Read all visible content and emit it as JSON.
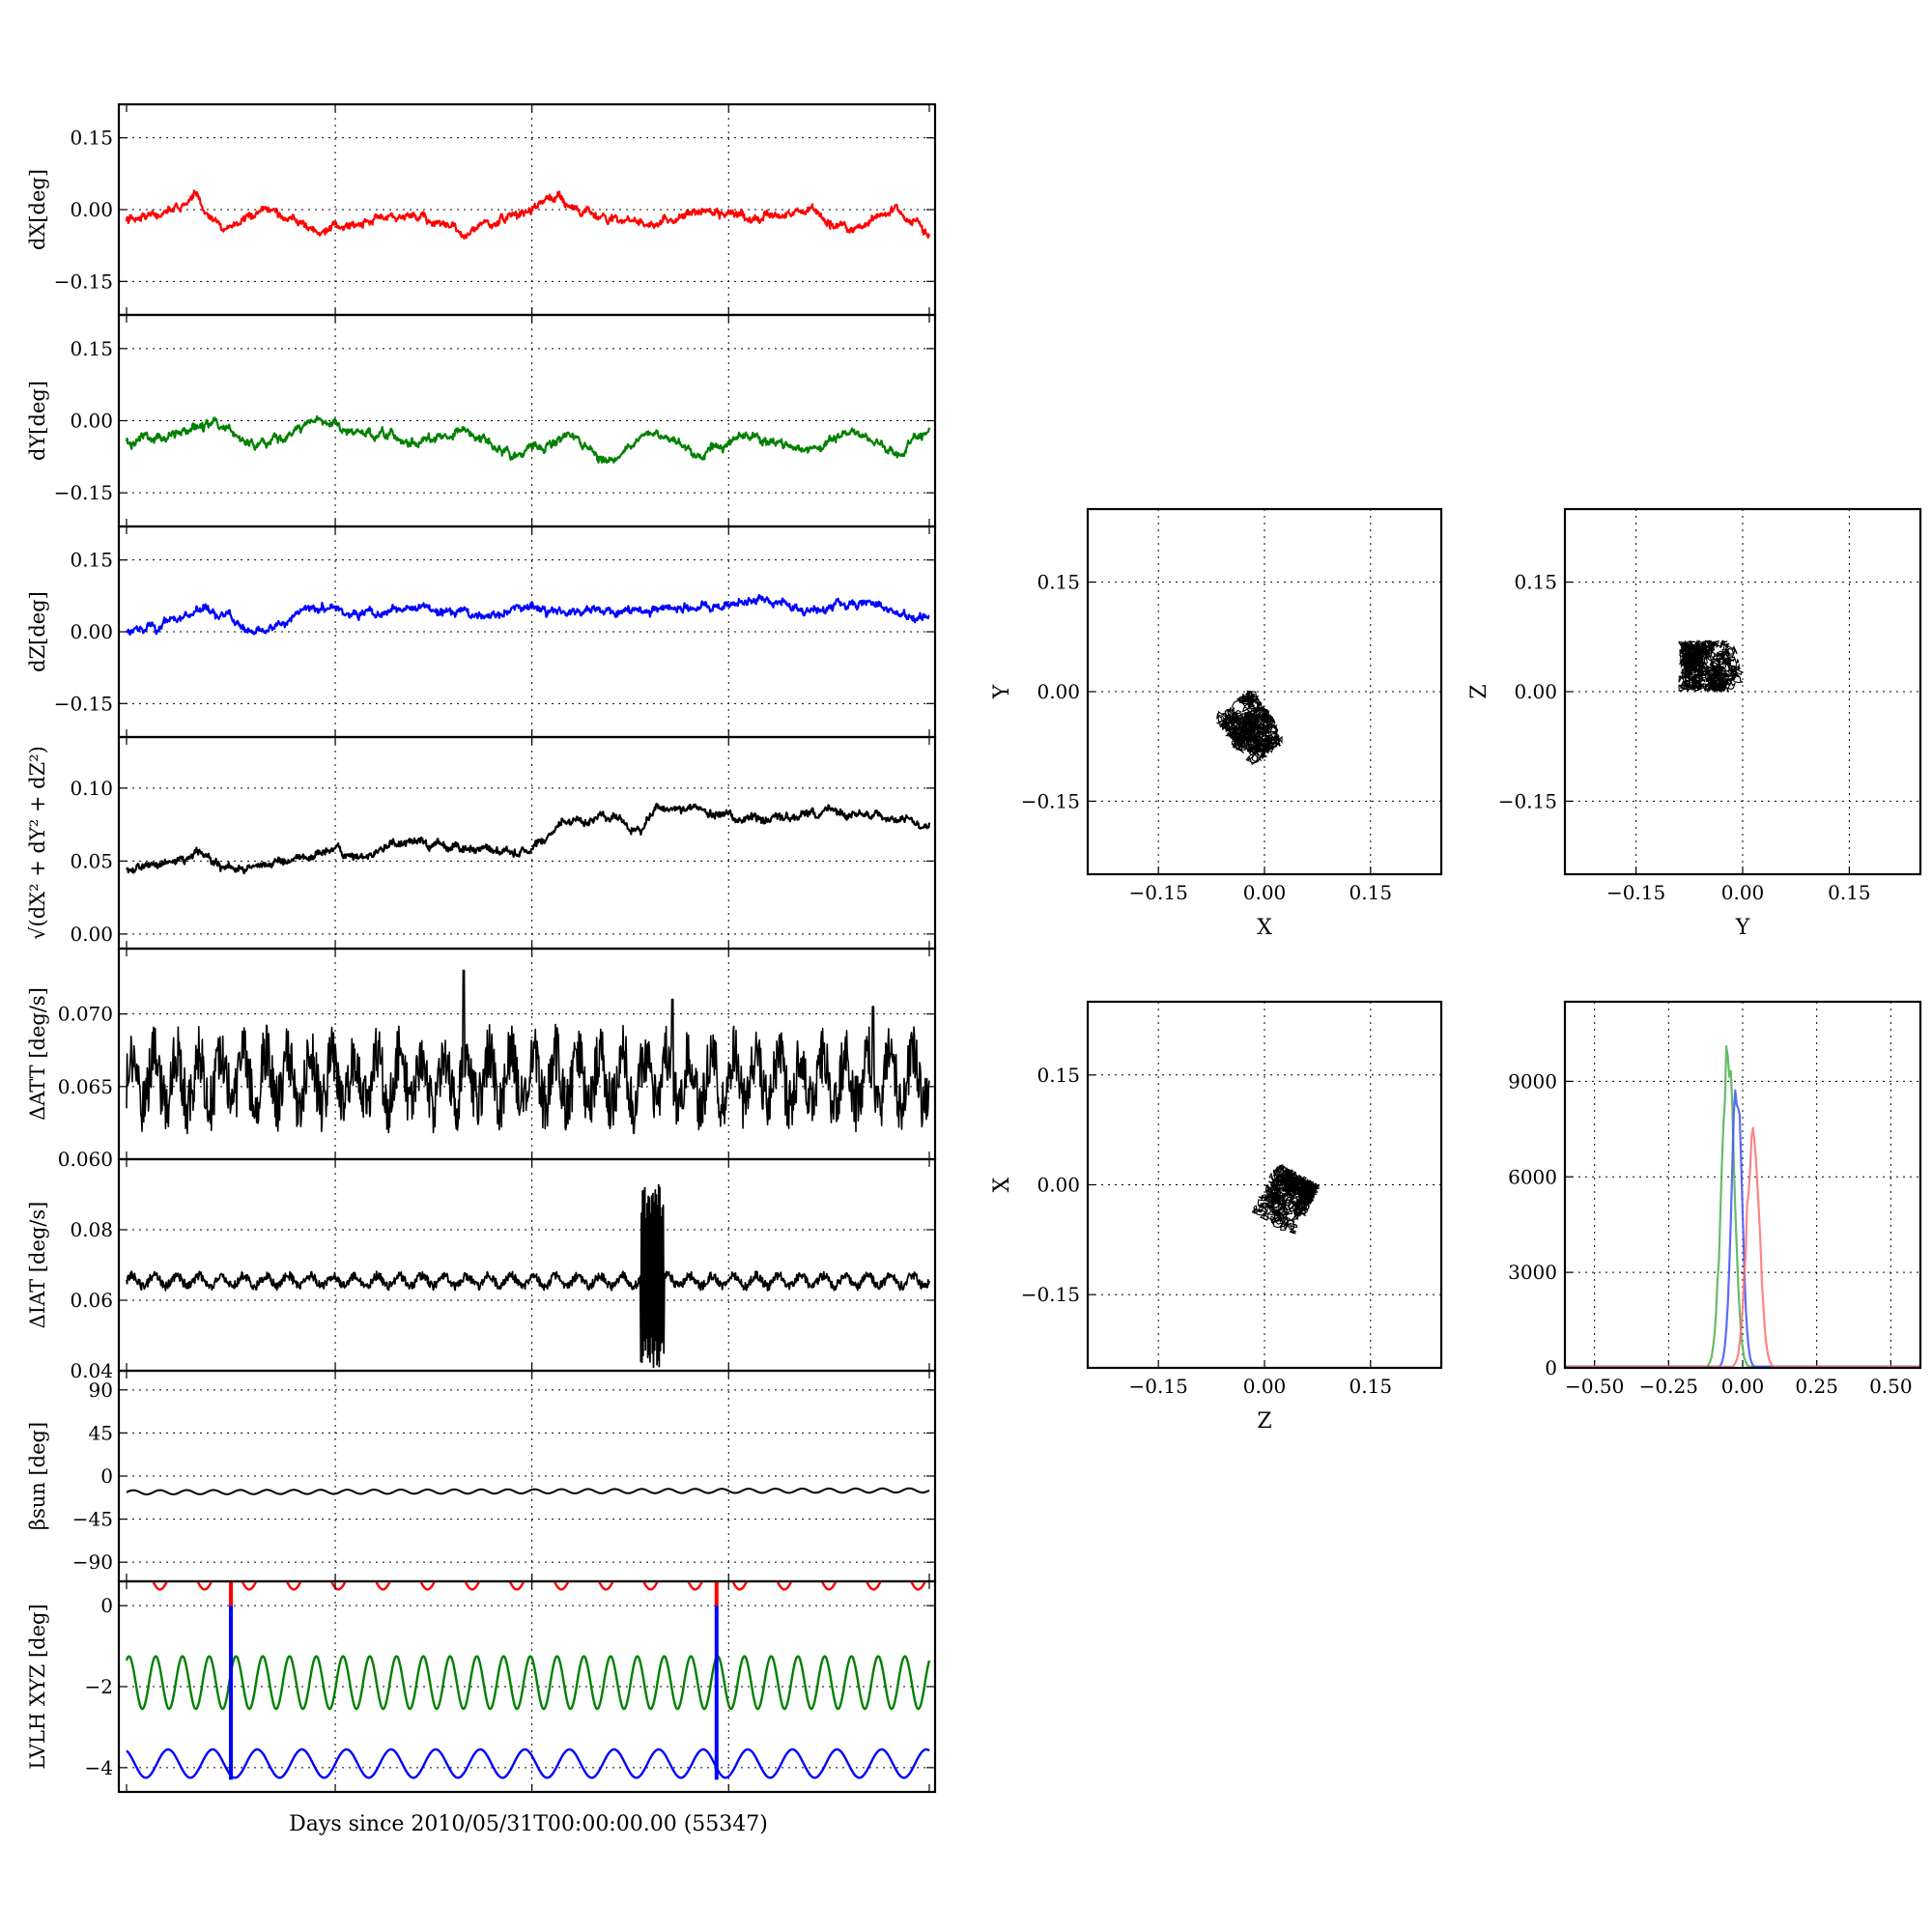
{
  "figure": {
    "xlabel": "Days since 2010/05/31T00:00:00.00 (55347)"
  },
  "chart_data": [
    {
      "id": "dX",
      "type": "line",
      "ylabel": "dX[deg]",
      "yticks": [
        "0.15",
        "0.00",
        "−0.15"
      ],
      "ytick_values": [
        0.15,
        0.0,
        -0.15
      ],
      "ylim": [
        -0.22,
        0.22
      ],
      "xlim": [
        0,
        1
      ],
      "grid": true,
      "series": [
        {
          "color": "#ff0000",
          "approx_profile": {
            "x": [
              0,
              0.03,
              0.085,
              0.12,
              0.185,
              0.24,
              0.3,
              0.36,
              0.42,
              0.47,
              0.54,
              0.6,
              0.66,
              0.72,
              0.78,
              0.85,
              0.9,
              0.96,
              1.0
            ],
            "y": [
              -0.02,
              -0.01,
              0.02,
              -0.04,
              0.0,
              -0.05,
              -0.02,
              -0.01,
              -0.05,
              -0.02,
              0.02,
              -0.02,
              -0.03,
              0.0,
              -0.02,
              0.0,
              -0.04,
              0.0,
              -0.05
            ]
          }
        }
      ]
    },
    {
      "id": "dY",
      "type": "line",
      "ylabel": "dY[deg]",
      "yticks": [
        "0.15",
        "0.00",
        "−0.15"
      ],
      "ytick_values": [
        0.15,
        0.0,
        -0.15
      ],
      "ylim": [
        -0.22,
        0.22
      ],
      "xlim": [
        0,
        1
      ],
      "grid": true,
      "series": [
        {
          "color": "#008000",
          "approx_profile": {
            "x": [
              0,
              0.06,
              0.11,
              0.16,
              0.24,
              0.3,
              0.36,
              0.42,
              0.48,
              0.55,
              0.6,
              0.66,
              0.72,
              0.78,
              0.85,
              0.9,
              0.96,
              1.0
            ],
            "y": [
              -0.04,
              -0.03,
              -0.01,
              -0.05,
              0.0,
              -0.03,
              -0.05,
              -0.02,
              -0.07,
              -0.03,
              -0.08,
              -0.03,
              -0.07,
              -0.03,
              -0.06,
              -0.02,
              -0.07,
              -0.03
            ]
          }
        }
      ]
    },
    {
      "id": "dZ",
      "type": "line",
      "ylabel": "dZ[deg]",
      "yticks": [
        "0.15",
        "0.00",
        "−0.15"
      ],
      "ytick_values": [
        0.15,
        0.0,
        -0.15
      ],
      "ylim": [
        -0.22,
        0.22
      ],
      "xlim": [
        0,
        1
      ],
      "grid": true,
      "series": [
        {
          "color": "#0000ff",
          "approx_profile": {
            "x": [
              0,
              0.04,
              0.1,
              0.16,
              0.24,
              0.31,
              0.38,
              0.45,
              0.52,
              0.59,
              0.66,
              0.73,
              0.8,
              0.86,
              0.92,
              1.0
            ],
            "y": [
              0.0,
              0.01,
              0.05,
              0.0,
              0.05,
              0.04,
              0.05,
              0.03,
              0.05,
              0.04,
              0.05,
              0.05,
              0.07,
              0.04,
              0.06,
              0.03
            ]
          }
        }
      ]
    },
    {
      "id": "dR",
      "type": "line",
      "ylabel": "√(dX² + dY² + dZ²)",
      "yticks": [
        "0.10",
        "0.05",
        "0.00"
      ],
      "ytick_values": [
        0.1,
        0.05,
        0.0
      ],
      "ylim": [
        -0.01,
        0.135
      ],
      "xlim": [
        0,
        1
      ],
      "grid": true,
      "series": [
        {
          "color": "#000000",
          "approx_profile": {
            "x": [
              0,
              0.05,
              0.09,
              0.13,
              0.2,
              0.25,
              0.3,
              0.35,
              0.42,
              0.5,
              0.55,
              0.6,
              0.64,
              0.66,
              0.7,
              0.76,
              0.82,
              0.88,
              0.95,
              1.0
            ],
            "y": [
              0.045,
              0.05,
              0.055,
              0.045,
              0.05,
              0.055,
              0.055,
              0.065,
              0.06,
              0.055,
              0.075,
              0.08,
              0.07,
              0.09,
              0.085,
              0.08,
              0.08,
              0.085,
              0.08,
              0.075
            ]
          }
        }
      ]
    },
    {
      "id": "dATT",
      "type": "line",
      "ylabel": "ΔATT [deg/s]",
      "yticks": [
        "0.070",
        "0.065",
        "0.060"
      ],
      "ytick_values": [
        0.07,
        0.065,
        0.06
      ],
      "ylim": [
        0.06,
        0.0745
      ],
      "xlim": [
        0,
        1
      ],
      "grid": true,
      "series": [
        {
          "color": "#000000",
          "approx_profile": {
            "x": [
              0,
              1
            ],
            "y": [
              0.0655,
              0.0655
            ]
          },
          "spikes_x": [
            0.42,
            0.68,
            0.93
          ],
          "spikes_y": [
            0.073,
            0.071,
            0.0705
          ]
        }
      ]
    },
    {
      "id": "dIAT",
      "type": "line",
      "ylabel": "ΔIAT [deg/s]",
      "yticks": [
        "0.08",
        "0.06",
        "0.04"
      ],
      "ytick_values": [
        0.08,
        0.06,
        0.04
      ],
      "ylim": [
        0.04,
        0.1
      ],
      "xlim": [
        0,
        1
      ],
      "grid": true,
      "series": [
        {
          "color": "#000000",
          "approx_profile": {
            "x": [
              0,
              1
            ],
            "y": [
              0.066,
              0.066
            ]
          },
          "burst_x": [
            0.64,
            0.67
          ],
          "burst_y": [
            0.04,
            0.093
          ]
        }
      ]
    },
    {
      "id": "beta_sun",
      "type": "line",
      "ylabel": "βsun [deg]",
      "yticks": [
        "90",
        "45",
        "0",
        "−45",
        "−90"
      ],
      "ytick_values": [
        90,
        45,
        0,
        -45,
        -90
      ],
      "ylim": [
        -110,
        110
      ],
      "xlim": [
        0,
        1
      ],
      "grid": true,
      "series": [
        {
          "color": "#000000",
          "approx_profile": {
            "x": [
              0,
              1
            ],
            "y": [
              -17,
              -15
            ]
          }
        }
      ]
    },
    {
      "id": "lvlh",
      "type": "line",
      "ylabel": "LVLH XYZ [deg]",
      "yticks": [
        "0",
        "−2",
        "−4"
      ],
      "ytick_values": [
        0,
        -2,
        -4
      ],
      "ylim": [
        -4.6,
        0.6
      ],
      "xlim": [
        0,
        1
      ],
      "grid": true,
      "series": [
        {
          "color": "#ff0000",
          "approx_profile": {
            "x": [
              0,
              1
            ],
            "y": [
              0.85,
              0.85
            ]
          }
        },
        {
          "color": "#008000",
          "approx_profile": {
            "x": [
              0,
              1
            ],
            "y": [
              -1.9,
              -1.9
            ]
          }
        },
        {
          "color": "#0000ff",
          "approx_profile": {
            "x": [
              0,
              1
            ],
            "y": [
              -3.9,
              -3.9
            ]
          }
        }
      ],
      "jumps_x": [
        0.13,
        0.735
      ]
    },
    {
      "id": "scatter_xy",
      "type": "scatter",
      "xlabel": "X",
      "ylabel": "Y",
      "xticks": [
        "−0.15",
        "0.00",
        "0.15"
      ],
      "yticks": [
        "0.15",
        "0.00",
        "−0.15"
      ],
      "tick_values": [
        -0.15,
        0.0,
        0.15
      ],
      "xlim": [
        -0.25,
        0.25
      ],
      "ylim": [
        -0.25,
        0.25
      ],
      "grid": true,
      "cluster": {
        "cx": -0.02,
        "cy": -0.05,
        "rx": 0.035,
        "ry": 0.045,
        "tilt": 0.6
      }
    },
    {
      "id": "scatter_yz",
      "type": "scatter",
      "xlabel": "Y",
      "ylabel": "Z",
      "xticks": [
        "−0.15",
        "0.00",
        "0.15"
      ],
      "yticks": [
        "0.15",
        "0.00",
        "−0.15"
      ],
      "tick_values": [
        -0.15,
        0.0,
        0.15
      ],
      "xlim": [
        -0.25,
        0.25
      ],
      "ylim": [
        -0.25,
        0.25
      ],
      "grid": true,
      "cluster": {
        "cx": -0.045,
        "cy": 0.035,
        "rx": 0.045,
        "ry": 0.035,
        "tilt": 0.0
      }
    },
    {
      "id": "scatter_zx",
      "type": "scatter",
      "xlabel": "Z",
      "ylabel": "X",
      "xticks": [
        "−0.15",
        "0.00",
        "0.15"
      ],
      "yticks": [
        "0.15",
        "0.00",
        "−0.15"
      ],
      "tick_values": [
        -0.15,
        0.0,
        0.15
      ],
      "xlim": [
        -0.25,
        0.25
      ],
      "ylim": [
        -0.25,
        0.25
      ],
      "grid": true,
      "cluster": {
        "cx": 0.03,
        "cy": -0.02,
        "rx": 0.035,
        "ry": 0.04,
        "tilt": -0.5
      }
    },
    {
      "id": "histogram",
      "type": "area",
      "xticks": [
        "−0.50",
        "−0.25",
        "0.00",
        "0.25",
        "0.50"
      ],
      "xtick_values": [
        -0.5,
        -0.25,
        0.0,
        0.25,
        0.5
      ],
      "yticks": [
        "9000",
        "6000",
        "3000",
        "0"
      ],
      "ytick_values": [
        9000,
        6000,
        3000,
        0
      ],
      "xlim": [
        -0.6,
        0.6
      ],
      "ylim": [
        0,
        11500
      ],
      "grid": true,
      "series": [
        {
          "color": "#4caf50",
          "center": -0.05,
          "width": 0.03,
          "peak": 10700
        },
        {
          "color": "#3f51ff",
          "center": -0.02,
          "width": 0.025,
          "peak": 9500
        },
        {
          "color": "#ff7070",
          "center": 0.035,
          "width": 0.03,
          "peak": 8000
        }
      ]
    }
  ]
}
